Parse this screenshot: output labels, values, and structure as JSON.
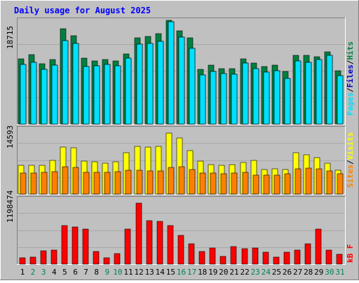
{
  "chart_data": {
    "type": "bar",
    "title": "Daily usage for August 2025",
    "categories": [
      "1",
      "2",
      "3",
      "4",
      "5",
      "6",
      "7",
      "8",
      "9",
      "10",
      "11",
      "12",
      "13",
      "14",
      "15",
      "16",
      "17",
      "18",
      "19",
      "20",
      "21",
      "22",
      "23",
      "24",
      "25",
      "26",
      "27",
      "28",
      "29",
      "30",
      "31"
    ],
    "weekend_days": [
      "2",
      "3",
      "9",
      "10",
      "16",
      "17",
      "23",
      "24",
      "30",
      "31"
    ],
    "panels": [
      {
        "name": "hits-files-pages",
        "max_label": "18715",
        "ylim": [
          0,
          18715
        ],
        "series": [
          {
            "name": "Hits",
            "color": "#008040",
            "values": [
              11760,
              12500,
              10830,
              11590,
              17150,
              15970,
              11900,
              11380,
              11620,
              11380,
              12640,
              15500,
              15810,
              16270,
              18720,
              16810,
              15600,
              9830,
              10590,
              10030,
              9930,
              11710,
              11000,
              10350,
              10600,
              9430,
              12400,
              12370,
              12170,
              13010,
              9590
            ]
          },
          {
            "name": "Files",
            "color": "#0000c0",
            "values": [
              10700,
              11180,
              9900,
              10640,
              15100,
              14600,
              10350,
              10480,
              10700,
              10520,
              11900,
              14400,
              14500,
              14900,
              18400,
              15700,
              13700,
              8870,
              9450,
              9050,
              9040,
              11000,
              10000,
              9350,
              9620,
              8250,
              11350,
              11100,
              11600,
              12350,
              8670
            ]
          },
          {
            "name": "Pages",
            "color": "#00e0ff",
            "values": [
              10700,
              11180,
              9900,
              10640,
              15100,
              14600,
              10350,
              10480,
              10700,
              10520,
              11900,
              14400,
              14500,
              14900,
              18400,
              15700,
              13700,
              8870,
              9450,
              9050,
              9040,
              11000,
              10000,
              9350,
              9620,
              8250,
              11350,
              11100,
              11600,
              12350,
              8670
            ]
          }
        ]
      },
      {
        "name": "sites-visits",
        "max_label": "14593",
        "ylim": [
          0,
          14593
        ],
        "series": [
          {
            "name": "Visits",
            "color": "#ffff00",
            "values": [
              6480,
              6480,
              6490,
              7580,
              10560,
              10370,
              7430,
              7140,
              6950,
              7270,
              9200,
              10710,
              10560,
              10640,
              13600,
              12580,
              9770,
              7390,
              6570,
              6450,
              6640,
              6990,
              7540,
              5560,
              5630,
              5560,
              9240,
              8730,
              8220,
              6830,
              5270
            ]
          },
          {
            "name": "Sites",
            "color": "#ff8000",
            "values": [
              4780,
              4780,
              4800,
              5010,
              6120,
              5940,
              4940,
              4880,
              4900,
              4970,
              5310,
              5340,
              5140,
              5140,
              5980,
              6120,
              5510,
              4640,
              4760,
              4610,
              4730,
              4930,
              4300,
              4170,
              4300,
              4620,
              5680,
              5730,
              5600,
              5120,
              4490
            ]
          }
        ]
      },
      {
        "name": "kbytes",
        "max_label": "1198474",
        "ylim": [
          0,
          1198474
        ],
        "series": [
          {
            "name": "kB F",
            "color": "#ff0000",
            "values": [
              120000,
              128000,
              245000,
              255000,
              710000,
              680000,
              640000,
              238000,
              118000,
              190000,
              640000,
              1125000,
              805000,
              790000,
              715000,
              525000,
              375000,
              230000,
              300000,
              148000,
              318000,
              282000,
              300000,
              225000,
              128000,
              222000,
              258000,
              370000,
              642000,
              260000,
              180000
            ]
          }
        ]
      }
    ],
    "legend": {
      "right_top": [
        "Pages",
        "/",
        "Files",
        "/",
        "Hits"
      ],
      "right_middle": [
        "Sites",
        "/",
        "Visits"
      ],
      "right_bottom": [
        "kB F"
      ]
    },
    "colors": {
      "background": "#c0c0c0",
      "plot_background": "#c0c0c0",
      "title": "#0000ff",
      "weekday_label": "#000000",
      "weekend_label": "#00805c",
      "max_label": "#000000"
    }
  }
}
